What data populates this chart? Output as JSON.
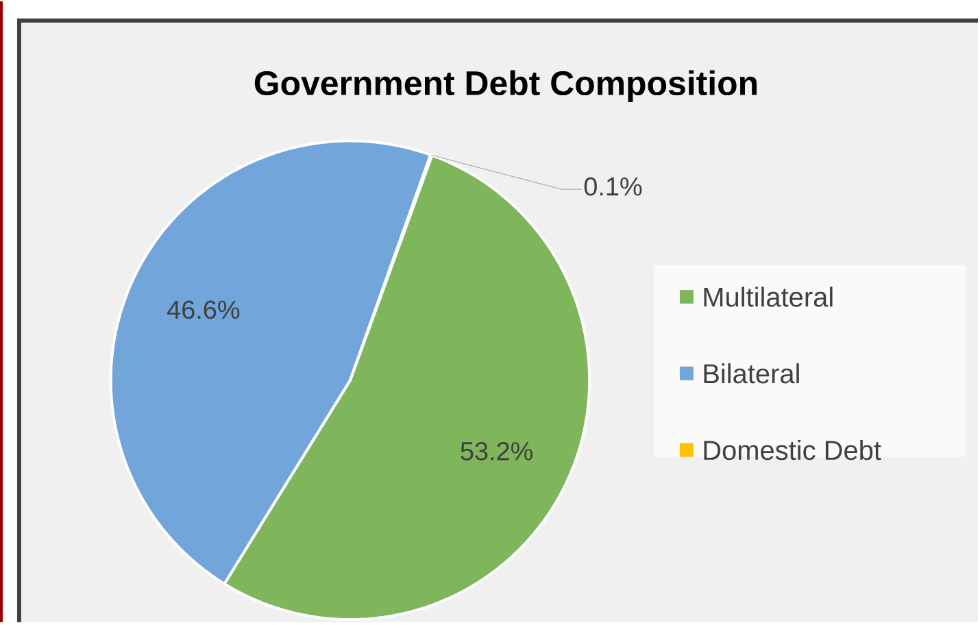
{
  "chart_data": {
    "type": "pie",
    "title": "Government Debt Composition",
    "categories": [
      "Multilateral",
      "Bilateral",
      "Domestic Debt"
    ],
    "values": [
      53.2,
      46.6,
      0.1
    ],
    "colors": [
      "#7fb65c",
      "#72a5d9",
      "#ffc000"
    ],
    "value_labels": [
      "53.2%",
      "46.6%",
      "0.1%"
    ],
    "legend": "right"
  }
}
